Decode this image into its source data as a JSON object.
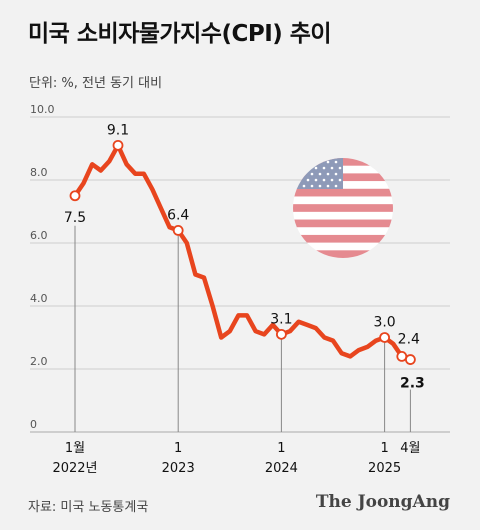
{
  "title": "미국 소비자물가지수(CPI) 추이",
  "unit_note": "단위: %, 전년 동기 대비",
  "source": "자료: 미국 노동통계국",
  "brand": "The JoongAng",
  "colors": {
    "line": "#e8451e",
    "highlight": "#e8451e",
    "grid": "#cfcfcf",
    "guide": "#888888",
    "background": "#f2f2f2"
  },
  "flag_icon": "us-flag-icon",
  "chart_data": {
    "type": "line",
    "ylim": [
      0,
      10
    ],
    "yticks": [
      0,
      2.0,
      4.0,
      6.0,
      8.0,
      10.0
    ],
    "ytick_labels": [
      "0",
      "2.0",
      "4.0",
      "6.0",
      "8.0",
      "10.0"
    ],
    "grid": true,
    "x": [
      "2022-01",
      "2022-02",
      "2022-03",
      "2022-04",
      "2022-05",
      "2022-06",
      "2022-07",
      "2022-08",
      "2022-09",
      "2022-10",
      "2022-11",
      "2022-12",
      "2023-01",
      "2023-02",
      "2023-03",
      "2023-04",
      "2023-05",
      "2023-06",
      "2023-07",
      "2023-08",
      "2023-09",
      "2023-10",
      "2023-11",
      "2023-12",
      "2024-01",
      "2024-02",
      "2024-03",
      "2024-04",
      "2024-05",
      "2024-06",
      "2024-07",
      "2024-08",
      "2024-09",
      "2024-10",
      "2024-11",
      "2024-12",
      "2025-01",
      "2025-02",
      "2025-03",
      "2025-04"
    ],
    "values": [
      7.5,
      7.9,
      8.5,
      8.3,
      8.6,
      9.1,
      8.5,
      8.2,
      8.2,
      7.7,
      7.1,
      6.5,
      6.4,
      6.0,
      5.0,
      4.9,
      4.0,
      3.0,
      3.2,
      3.7,
      3.7,
      3.2,
      3.1,
      3.4,
      3.1,
      3.2,
      3.5,
      3.4,
      3.3,
      3.0,
      2.9,
      2.5,
      2.4,
      2.6,
      2.7,
      2.9,
      3.0,
      2.8,
      2.4,
      2.3
    ],
    "xticks": [
      {
        "x": "2022-01",
        "label": "1월",
        "sub": "2022년"
      },
      {
        "x": "2023-01",
        "label": "1",
        "sub": "2023"
      },
      {
        "x": "2024-01",
        "label": "1",
        "sub": "2024"
      },
      {
        "x": "2025-01",
        "label": "1",
        "sub": "2025"
      },
      {
        "x": "2025-04",
        "label": "4월",
        "sub": ""
      }
    ],
    "annotations": [
      {
        "x": "2022-01",
        "label": "7.5",
        "pos": "below",
        "guide": true
      },
      {
        "x": "2022-06",
        "label": "9.1",
        "pos": "above",
        "guide": false
      },
      {
        "x": "2023-01",
        "label": "6.4",
        "pos": "above",
        "guide": true
      },
      {
        "x": "2024-01",
        "label": "3.1",
        "pos": "above",
        "guide": true
      },
      {
        "x": "2025-01",
        "label": "3.0",
        "pos": "above",
        "guide": true
      },
      {
        "x": "2025-03",
        "label": "2.4",
        "pos": "above-right",
        "guide": false
      },
      {
        "x": "2025-04",
        "label": "2.3",
        "pos": "below",
        "guide": true,
        "highlight": true
      }
    ]
  }
}
